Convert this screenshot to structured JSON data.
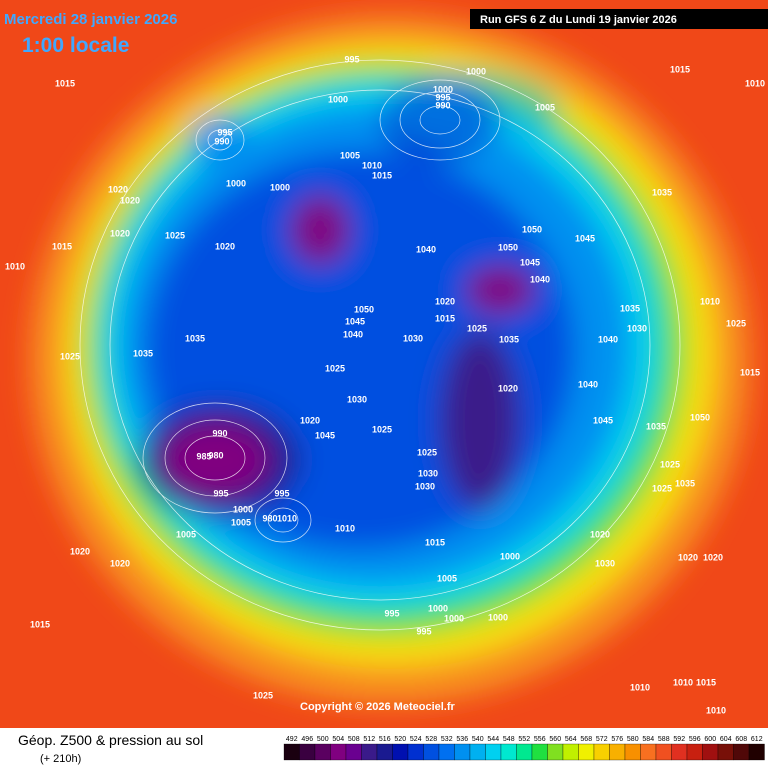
{
  "header": {
    "date": "Mercredi 28 janvier 2026",
    "local_time": "1:00 locale",
    "run": "Run GFS 6 Z du Lundi 19 janvier 2026"
  },
  "copyright": "Copyright © 2026 Meteociel.fr",
  "legend": {
    "title": "Géop. Z500 & pression au sol",
    "subtitle": "(+ 210h)",
    "values": [
      492,
      496,
      500,
      504,
      508,
      512,
      516,
      520,
      524,
      528,
      532,
      536,
      540,
      544,
      548,
      552,
      556,
      560,
      564,
      568,
      572,
      576,
      580,
      584,
      588,
      592,
      596,
      600,
      604,
      608,
      612
    ],
    "colors": [
      "#1a0010",
      "#3a0040",
      "#5a0060",
      "#800080",
      "#6a0090",
      "#3a1a8a",
      "#1a1a90",
      "#0010b0",
      "#0030d0",
      "#0050e0",
      "#0070f0",
      "#0090f0",
      "#00b0f0",
      "#00d0f0",
      "#00e8d0",
      "#00e890",
      "#20e040",
      "#80e020",
      "#c0f000",
      "#f0f000",
      "#f8d000",
      "#f8b000",
      "#f89000",
      "#f87020",
      "#f05020",
      "#e03020",
      "#c82010",
      "#a01010",
      "#781008",
      "#500808",
      "#200000"
    ]
  },
  "isobar_labels": [
    1015,
    1010,
    995,
    1000,
    1015,
    1000,
    1000,
    995,
    990,
    1005,
    995,
    990,
    1005,
    1010,
    1015,
    1000,
    1000,
    1020,
    1020,
    1035,
    1020,
    1025,
    1015,
    1020,
    1050,
    1050,
    1045,
    1040,
    1045,
    1040,
    1010,
    1050,
    1020,
    1015,
    1045,
    1040,
    1030,
    1025,
    1035,
    1035,
    1030,
    1040,
    1035,
    1035,
    1025,
    1025,
    1020,
    1040,
    1030,
    1045,
    1020,
    1025,
    1045,
    990,
    985,
    980,
    995,
    1000,
    1005,
    995,
    980,
    1010,
    1025,
    1030,
    1030,
    1005,
    1010,
    1015,
    1020,
    1020,
    1020,
    1020,
    1020,
    1000,
    1030,
    1005,
    995,
    1000,
    1000,
    1000,
    995,
    1015,
    1025,
    1010,
    1010,
    1015,
    1010,
    1035,
    1025,
    1025,
    1035,
    1010,
    1025,
    1015,
    1050
  ]
}
